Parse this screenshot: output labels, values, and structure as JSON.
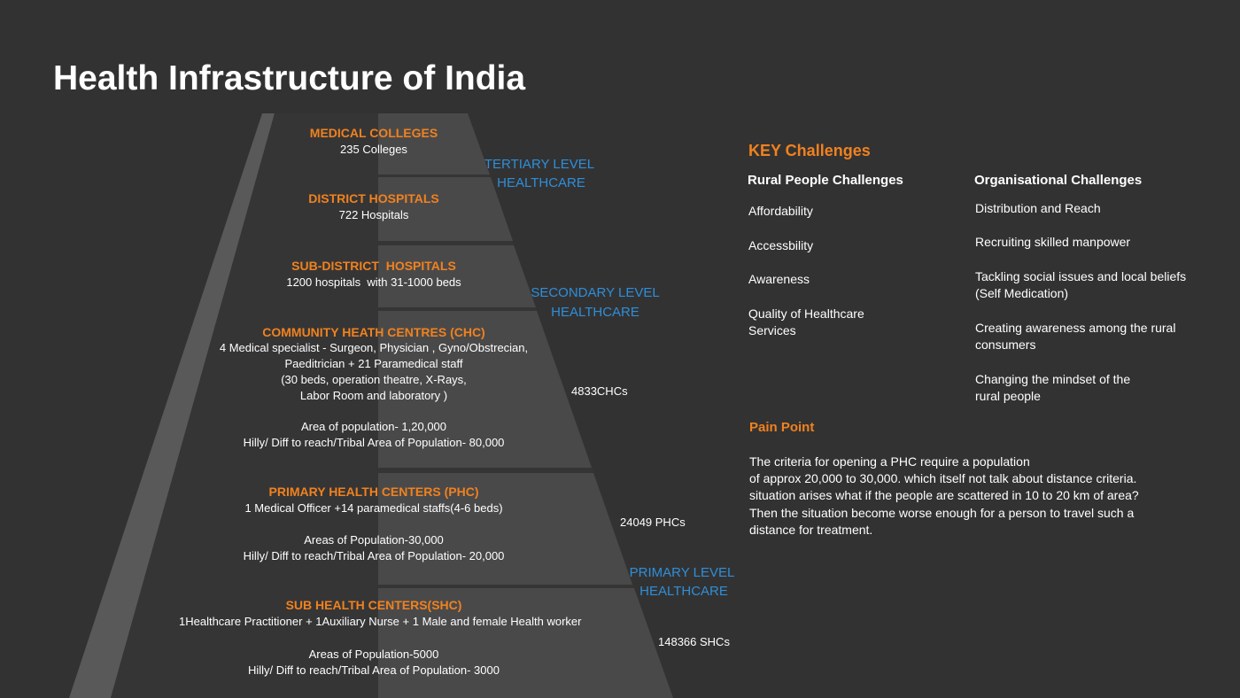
{
  "title": "Health Infrastructure of India",
  "pyramid": {
    "levels": [
      {
        "name": "MEDICAL COLLEGES",
        "details": [
          "235 Colleges"
        ]
      },
      {
        "name": "DISTRICT HOSPITALS",
        "details": [
          "722 Hospitals"
        ]
      },
      {
        "name": "SUB-DISTRICT  HOSPITALS",
        "details": [
          "1200 hospitals  with 31-1000 beds"
        ]
      },
      {
        "name": "COMMUNITY HEATH CENTRES (CHC)",
        "details": [
          "4 Medical specialist - Surgeon, Physician , Gyno/Obstrecian,",
          "Paeditrician + 21 Paramedical staff",
          "(30 beds, operation theatre, X-Rays,",
          "Labor Room and laboratory )",
          "Area of population- 1,20,000",
          "Hilly/ Diff to reach/Tribal Area of Population- 80,000"
        ],
        "count": "4833CHCs"
      },
      {
        "name": "PRIMARY HEALTH CENTERS (PHC)",
        "details": [
          "1 Medical Officer +14 paramedical staffs(4-6 beds)",
          "Areas of Population-30,000",
          "Hilly/ Diff to reach/Tribal Area of Population- 20,000"
        ],
        "count": "24049 PHCs"
      },
      {
        "name": "SUB HEALTH CENTERS(SHC)",
        "details": [
          "1Healthcare Practitioner + 1Auxiliary Nurse + 1 Male and female Health worker",
          "Areas of Population-5000",
          "Hilly/ Diff to reach/Tribal Area of Population- 3000"
        ],
        "count": "148366 SHCs"
      }
    ],
    "care_levels": [
      [
        "TERTIARY LEVEL",
        "HEALTHCARE"
      ],
      [
        "SECONDARY LEVEL",
        "HEALTHCARE"
      ],
      [
        "PRIMARY LEVEL",
        "HEALTHCARE"
      ]
    ]
  },
  "key_challenges": {
    "title": "KEY Challenges",
    "rural": {
      "title": "Rural People Challenges",
      "items": [
        [
          "Affordability"
        ],
        [
          "Accessbility"
        ],
        [
          "Awareness"
        ],
        [
          "Quality of Healthcare",
          "Services"
        ]
      ]
    },
    "organisational": {
      "title": "Organisational Challenges",
      "items": [
        [
          "Distribution and Reach"
        ],
        [
          "Recruiting skilled manpower"
        ],
        [
          "Tackling social issues and local beliefs",
          "(Self Medication)"
        ],
        [
          "Creating awareness among the rural",
          "consumers"
        ],
        [
          "Changing the mindset of the",
          "rural people"
        ]
      ]
    }
  },
  "pain_point": {
    "title": "Pain Point",
    "lines": [
      "The criteria for opening a PHC require a population",
      "of approx 20,000 to 30,000. which itself not talk about distance criteria.",
      "situation arises what if the people are scattered in 10 to 20 km of area?",
      "Then the situation become worse enough for a person to travel such a",
      "distance for treatment."
    ]
  }
}
